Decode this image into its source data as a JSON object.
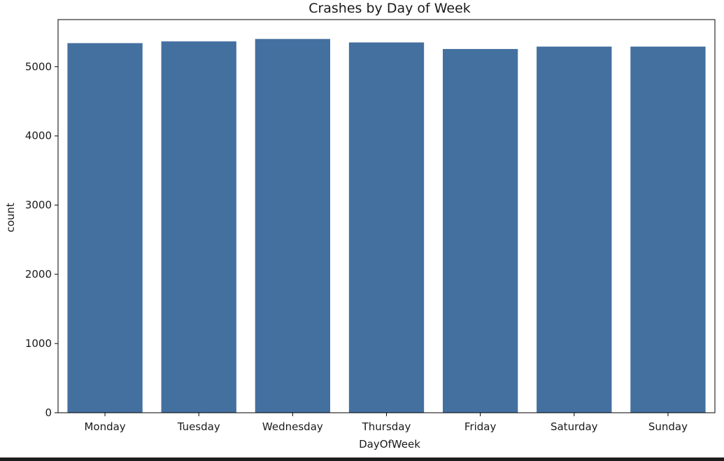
{
  "chart_data": {
    "type": "bar",
    "title": "Crashes by Day of Week",
    "xlabel": "DayOfWeek",
    "ylabel": "count",
    "categories": [
      "Monday",
      "Tuesday",
      "Wednesday",
      "Thursday",
      "Friday",
      "Saturday",
      "Sunday"
    ],
    "values": [
      5340,
      5365,
      5400,
      5350,
      5255,
      5290,
      5290
    ],
    "ylim": [
      0,
      5680
    ],
    "yticks": [
      0,
      1000,
      2000,
      3000,
      4000,
      5000
    ],
    "ytick_labels": [
      "0",
      "1000",
      "2000",
      "3000",
      "4000",
      "5000"
    ],
    "grid": false,
    "bar_color": "#4470a0"
  }
}
